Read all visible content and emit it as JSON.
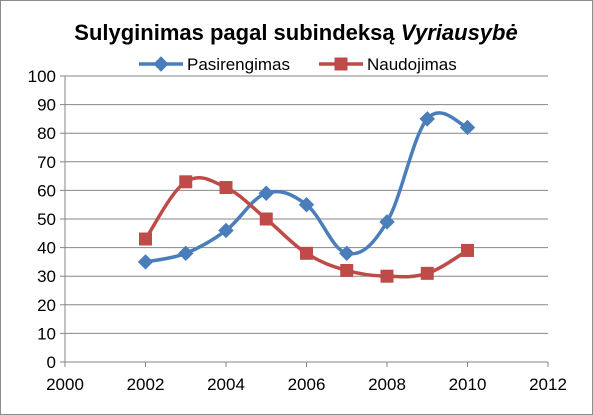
{
  "chart_data": {
    "type": "line",
    "title_parts": [
      {
        "text": "Sulyginimas pagal subindeksą ",
        "italic": false
      },
      {
        "text": "Vyriausybė",
        "italic": true
      }
    ],
    "xlabel": "",
    "ylabel": "",
    "xlim": [
      2000,
      2012
    ],
    "ylim": [
      0,
      100
    ],
    "x_ticks": [
      2000,
      2002,
      2004,
      2006,
      2008,
      2010,
      2012
    ],
    "y_ticks": [
      0,
      10,
      20,
      30,
      40,
      50,
      60,
      70,
      80,
      90,
      100
    ],
    "grid": "horizontal",
    "legend_position": "top",
    "smooth_lines": true,
    "series": [
      {
        "name": "Pasirengimas",
        "color": "#4a7ebb",
        "marker": "diamond",
        "x": [
          2002,
          2003,
          2004,
          2005,
          2006,
          2007,
          2008,
          2009,
          2010
        ],
        "y": [
          35,
          38,
          46,
          59,
          55,
          38,
          49,
          85,
          82
        ]
      },
      {
        "name": "Naudojimas",
        "color": "#be4b48",
        "marker": "square",
        "x": [
          2002,
          2003,
          2004,
          2005,
          2006,
          2007,
          2008,
          2009,
          2010
        ],
        "y": [
          43,
          63,
          61,
          50,
          38,
          32,
          30,
          31,
          39
        ]
      }
    ]
  }
}
